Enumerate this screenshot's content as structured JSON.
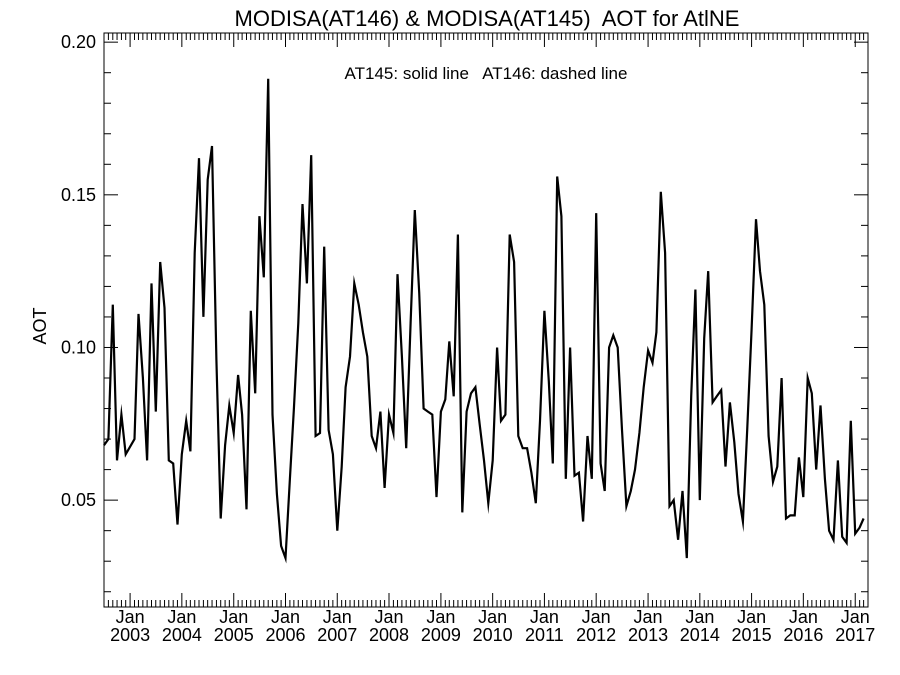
{
  "chart_data": {
    "type": "line",
    "title": "MODISA(AT146) & MODISA(AT145)  AOT for AtlNE",
    "annotation": "AT145: solid line   AT146: dashed line",
    "ylabel": "AOT",
    "xlabel": "",
    "x_range": [
      "2002-07-01",
      "2017-04-01"
    ],
    "ylim": [
      0.015,
      0.203
    ],
    "y_ticks": [
      0.05,
      0.1,
      0.15,
      0.2
    ],
    "y_tick_labels": [
      "0.05",
      "0.10",
      "0.15",
      "0.20"
    ],
    "x_ticks": [
      "2003-01-01",
      "2004-01-01",
      "2005-01-01",
      "2006-01-01",
      "2007-01-01",
      "2008-01-01",
      "2009-01-01",
      "2010-01-01",
      "2011-01-01",
      "2012-01-01",
      "2013-01-01",
      "2014-01-01",
      "2015-01-01",
      "2016-01-01",
      "2017-01-01"
    ],
    "x_tick_labels_top": [
      "Jan",
      "Jan",
      "Jan",
      "Jan",
      "Jan",
      "Jan",
      "Jan",
      "Jan",
      "Jan",
      "Jan",
      "Jan",
      "Jan",
      "Jan",
      "Jan",
      "Jan"
    ],
    "x_tick_labels_bottom": [
      "2003",
      "2004",
      "2005",
      "2006",
      "2007",
      "2008",
      "2009",
      "2010",
      "2011",
      "2012",
      "2013",
      "2014",
      "2015",
      "2016",
      "2017"
    ],
    "grid": false,
    "series": [
      {
        "style": "solid",
        "color": "#000000",
        "points": [
          [
            "2002-07-01",
            0.068
          ],
          [
            "2002-08-01",
            0.07
          ],
          [
            "2002-09-01",
            0.114
          ],
          [
            "2002-10-01",
            0.063
          ],
          [
            "2002-11-01",
            0.078
          ],
          [
            "2002-12-01",
            0.065
          ],
          [
            "2003-02-01",
            0.07
          ],
          [
            "2003-03-01",
            0.111
          ],
          [
            "2003-04-01",
            0.09
          ],
          [
            "2003-05-01",
            0.063
          ],
          [
            "2003-06-01",
            0.121
          ],
          [
            "2003-07-01",
            0.079
          ],
          [
            "2003-08-01",
            0.128
          ],
          [
            "2003-09-01",
            0.113
          ],
          [
            "2003-10-01",
            0.063
          ],
          [
            "2003-11-01",
            0.062
          ],
          [
            "2003-12-01",
            0.042
          ],
          [
            "2004-01-01",
            0.065
          ],
          [
            "2004-02-01",
            0.076
          ],
          [
            "2004-03-01",
            0.066
          ],
          [
            "2004-04-01",
            0.131
          ],
          [
            "2004-05-01",
            0.162
          ],
          [
            "2004-06-01",
            0.11
          ],
          [
            "2004-07-01",
            0.155
          ],
          [
            "2004-08-01",
            0.166
          ],
          [
            "2004-09-01",
            0.096
          ],
          [
            "2004-10-01",
            0.044
          ],
          [
            "2004-11-01",
            0.068
          ],
          [
            "2004-12-01",
            0.081
          ],
          [
            "2005-01-01",
            0.072
          ],
          [
            "2005-02-01",
            0.091
          ],
          [
            "2005-03-01",
            0.078
          ],
          [
            "2005-04-01",
            0.047
          ],
          [
            "2005-05-01",
            0.112
          ],
          [
            "2005-06-01",
            0.085
          ],
          [
            "2005-07-01",
            0.143
          ],
          [
            "2005-08-01",
            0.123
          ],
          [
            "2005-09-01",
            0.188
          ],
          [
            "2005-10-01",
            0.078
          ],
          [
            "2005-11-01",
            0.052
          ],
          [
            "2005-12-01",
            0.035
          ],
          [
            "2006-01-01",
            0.031
          ],
          [
            "2006-02-01",
            0.057
          ],
          [
            "2006-03-01",
            0.08
          ],
          [
            "2006-04-01",
            0.108
          ],
          [
            "2006-05-01",
            0.147
          ],
          [
            "2006-06-01",
            0.121
          ],
          [
            "2006-07-01",
            0.163
          ],
          [
            "2006-08-01",
            0.071
          ],
          [
            "2006-09-01",
            0.072
          ],
          [
            "2006-10-01",
            0.133
          ],
          [
            "2006-11-01",
            0.073
          ],
          [
            "2006-12-01",
            0.065
          ],
          [
            "2007-01-01",
            0.04
          ],
          [
            "2007-02-01",
            0.061
          ],
          [
            "2007-03-01",
            0.087
          ],
          [
            "2007-04-01",
            0.097
          ],
          [
            "2007-05-01",
            0.121
          ],
          [
            "2007-06-01",
            0.114
          ],
          [
            "2007-07-01",
            0.105
          ],
          [
            "2007-08-01",
            0.097
          ],
          [
            "2007-09-01",
            0.071
          ],
          [
            "2007-10-01",
            0.067
          ],
          [
            "2007-11-01",
            0.079
          ],
          [
            "2007-12-01",
            0.054
          ],
          [
            "2008-01-01",
            0.078
          ],
          [
            "2008-02-01",
            0.072
          ],
          [
            "2008-03-01",
            0.124
          ],
          [
            "2008-04-01",
            0.097
          ],
          [
            "2008-05-01",
            0.067
          ],
          [
            "2008-06-01",
            0.108
          ],
          [
            "2008-07-01",
            0.145
          ],
          [
            "2008-08-01",
            0.118
          ],
          [
            "2008-09-01",
            0.08
          ],
          [
            "2008-10-01",
            0.079
          ],
          [
            "2008-11-01",
            0.078
          ],
          [
            "2008-12-01",
            0.051
          ],
          [
            "2009-01-01",
            0.079
          ],
          [
            "2009-02-01",
            0.083
          ],
          [
            "2009-03-01",
            0.102
          ],
          [
            "2009-04-01",
            0.084
          ],
          [
            "2009-05-01",
            0.137
          ],
          [
            "2009-06-01",
            0.046
          ],
          [
            "2009-07-01",
            0.079
          ],
          [
            "2009-08-01",
            0.085
          ],
          [
            "2009-09-01",
            0.087
          ],
          [
            "2009-10-01",
            0.075
          ],
          [
            "2009-11-01",
            0.063
          ],
          [
            "2009-12-01",
            0.049
          ],
          [
            "2010-01-01",
            0.063
          ],
          [
            "2010-02-01",
            0.1
          ],
          [
            "2010-03-01",
            0.076
          ],
          [
            "2010-04-01",
            0.078
          ],
          [
            "2010-05-01",
            0.137
          ],
          [
            "2010-06-01",
            0.128
          ],
          [
            "2010-07-01",
            0.071
          ],
          [
            "2010-08-01",
            0.067
          ],
          [
            "2010-09-01",
            0.067
          ],
          [
            "2010-10-01",
            0.059
          ],
          [
            "2010-11-01",
            0.049
          ],
          [
            "2010-12-01",
            0.076
          ],
          [
            "2011-01-01",
            0.112
          ],
          [
            "2011-02-01",
            0.089
          ],
          [
            "2011-03-01",
            0.062
          ],
          [
            "2011-04-01",
            0.156
          ],
          [
            "2011-05-01",
            0.143
          ],
          [
            "2011-06-01",
            0.057
          ],
          [
            "2011-07-01",
            0.1
          ],
          [
            "2011-08-01",
            0.058
          ],
          [
            "2011-09-01",
            0.059
          ],
          [
            "2011-10-01",
            0.043
          ],
          [
            "2011-11-01",
            0.071
          ],
          [
            "2011-12-01",
            0.057
          ],
          [
            "2012-01-01",
            0.144
          ],
          [
            "2012-02-01",
            0.062
          ],
          [
            "2012-03-01",
            0.053
          ],
          [
            "2012-04-01",
            0.1
          ],
          [
            "2012-05-01",
            0.104
          ],
          [
            "2012-06-01",
            0.1
          ],
          [
            "2012-07-01",
            0.073
          ],
          [
            "2012-08-01",
            0.048
          ],
          [
            "2012-09-01",
            0.053
          ],
          [
            "2012-10-01",
            0.06
          ],
          [
            "2012-11-01",
            0.072
          ],
          [
            "2012-12-01",
            0.087
          ],
          [
            "2013-01-01",
            0.099
          ],
          [
            "2013-02-01",
            0.095
          ],
          [
            "2013-03-01",
            0.105
          ],
          [
            "2013-04-01",
            0.151
          ],
          [
            "2013-05-01",
            0.131
          ],
          [
            "2013-06-01",
            0.048
          ],
          [
            "2013-07-01",
            0.05
          ],
          [
            "2013-08-01",
            0.037
          ],
          [
            "2013-09-01",
            0.053
          ],
          [
            "2013-10-01",
            0.031
          ],
          [
            "2013-11-01",
            0.084
          ],
          [
            "2013-12-01",
            0.119
          ],
          [
            "2014-01-01",
            0.05
          ],
          [
            "2014-02-01",
            0.103
          ],
          [
            "2014-03-01",
            0.125
          ],
          [
            "2014-04-01",
            0.082
          ],
          [
            "2014-05-01",
            0.084
          ],
          [
            "2014-06-01",
            0.086
          ],
          [
            "2014-07-01",
            0.061
          ],
          [
            "2014-08-01",
            0.082
          ],
          [
            "2014-09-01",
            0.069
          ],
          [
            "2014-10-01",
            0.052
          ],
          [
            "2014-11-01",
            0.043
          ],
          [
            "2014-12-01",
            0.073
          ],
          [
            "2015-01-01",
            0.106
          ],
          [
            "2015-02-01",
            0.142
          ],
          [
            "2015-03-01",
            0.125
          ],
          [
            "2015-04-01",
            0.114
          ],
          [
            "2015-05-01",
            0.071
          ],
          [
            "2015-06-01",
            0.056
          ],
          [
            "2015-07-01",
            0.061
          ],
          [
            "2015-08-01",
            0.09
          ],
          [
            "2015-09-01",
            0.044
          ],
          [
            "2015-10-01",
            0.045
          ],
          [
            "2015-11-01",
            0.045
          ],
          [
            "2015-12-01",
            0.064
          ],
          [
            "2016-01-01",
            0.051
          ],
          [
            "2016-02-01",
            0.09
          ],
          [
            "2016-03-01",
            0.085
          ],
          [
            "2016-04-01",
            0.06
          ],
          [
            "2016-05-01",
            0.081
          ],
          [
            "2016-06-01",
            0.057
          ],
          [
            "2016-07-01",
            0.04
          ],
          [
            "2016-08-01",
            0.037
          ],
          [
            "2016-09-01",
            0.063
          ],
          [
            "2016-10-01",
            0.038
          ],
          [
            "2016-11-01",
            0.036
          ],
          [
            "2016-12-01",
            0.076
          ],
          [
            "2017-01-01",
            0.039
          ],
          [
            "2017-02-01",
            0.041
          ],
          [
            "2017-03-01",
            0.044
          ]
        ]
      },
      {
        "style": "dashed",
        "color": "#000000",
        "points": []
      }
    ]
  }
}
